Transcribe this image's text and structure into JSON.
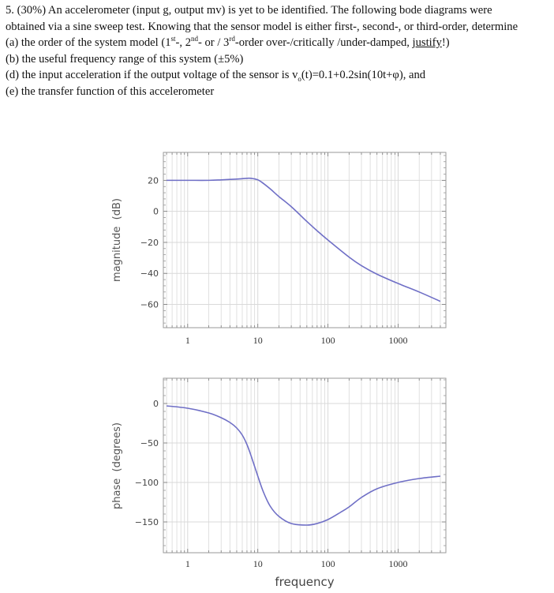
{
  "question": {
    "line1": "5. (30%) An accelerometer (input g, output mv) is yet to be identified. The following bode diagrams were",
    "line2": "obtained via a sine sweep test.  Knowing that the sensor model is either first-, second-, or third-order, determine",
    "line3_pre": "(a) the order of the system model (1",
    "line3_sup1": "st",
    "line3_mid1": "-,  2",
    "line3_sup2": "nd",
    "line3_mid2": "- or / 3",
    "line3_sup3": "rd",
    "line3_mid3": "-order over-/critically /under-damped, ",
    "line3_u": "justify",
    "line3_end": "!)",
    "line4": "(b) the useful frequency range of this system (±5%)",
    "line5_pre": "(d) the input acceleration if the output voltage of the sensor is v",
    "line5_sub": "o",
    "line5_post": "(t)=0.1+0.2sin(10t+φ), and",
    "line6": "(e) the transfer function of this accelerometer"
  },
  "colors": {
    "curve": "#6f6fc6",
    "grid": "#d9d9d9",
    "frame": "#9a9a9a"
  },
  "chart_data": [
    {
      "type": "line",
      "title": "",
      "xlabel": "",
      "ylabel": "magnitude (dB)",
      "xscale": "log",
      "xlim": [
        0.45,
        4800
      ],
      "ylim": [
        -75,
        38
      ],
      "xticks": [
        "1",
        "10",
        "100",
        "1000"
      ],
      "yticks": [
        "20",
        "0",
        "-20",
        "-40",
        "-60"
      ],
      "grid": true,
      "series": [
        {
          "name": "magnitude",
          "x": [
            0.5,
            1,
            2,
            3,
            5,
            7,
            8,
            10,
            12,
            15,
            20,
            30,
            50,
            70,
            100,
            200,
            300,
            500,
            1000,
            2000,
            4000
          ],
          "values": [
            20,
            20,
            20,
            20.3,
            20.8,
            21.3,
            21.3,
            20.3,
            18,
            14.5,
            9.5,
            3,
            -6.5,
            -12.5,
            -18.5,
            -29.5,
            -35,
            -40.5,
            -46.5,
            -52,
            -58
          ]
        }
      ]
    },
    {
      "type": "line",
      "title": "",
      "xlabel": "frequency",
      "ylabel": "phase (degrees)",
      "xscale": "log",
      "xlim": [
        0.45,
        4800
      ],
      "ylim": [
        -189,
        32
      ],
      "xticks": [
        "1",
        "10",
        "100",
        "1000"
      ],
      "yticks": [
        "0",
        "-50",
        "-100",
        "-150"
      ],
      "grid": true,
      "series": [
        {
          "name": "phase",
          "x": [
            0.5,
            1,
            2,
            3,
            4,
            5,
            6,
            7,
            8,
            10,
            12,
            15,
            20,
            30,
            50,
            70,
            100,
            150,
            200,
            300,
            500,
            1000,
            2000,
            4000
          ],
          "values": [
            -3,
            -6,
            -12,
            -18,
            -24,
            -31,
            -40,
            -52,
            -66,
            -92,
            -112,
            -130,
            -143,
            -152,
            -154,
            -152,
            -147,
            -138,
            -131,
            -119,
            -108,
            -100,
            -95,
            -92
          ]
        }
      ]
    }
  ]
}
